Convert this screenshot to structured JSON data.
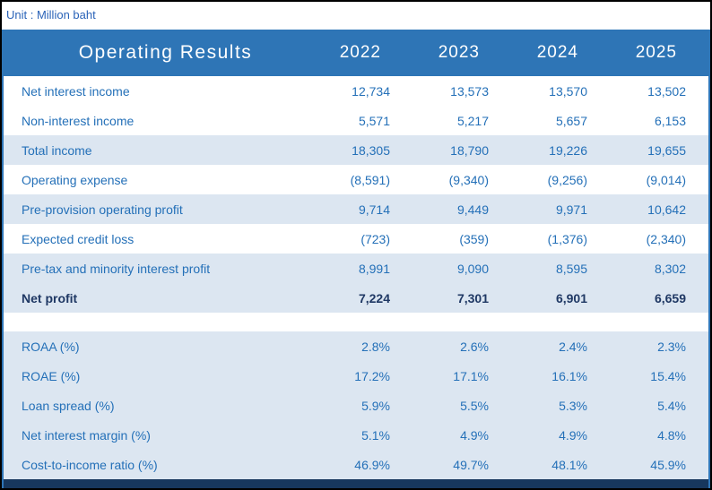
{
  "unit_label": "Unit : Million baht",
  "table": {
    "title": "Operating Results",
    "years": [
      "2022",
      "2023",
      "2024",
      "2025"
    ],
    "sections": {
      "operating": [
        {
          "label": "Net interest income",
          "values": [
            "12,734",
            "13,573",
            "13,570",
            "13,502"
          ],
          "shaded": false,
          "bold": false
        },
        {
          "label": "Non-interest income",
          "values": [
            "5,571",
            "5,217",
            "5,657",
            "6,153"
          ],
          "shaded": false,
          "bold": false
        },
        {
          "label": "Total income",
          "values": [
            "18,305",
            "18,790",
            "19,226",
            "19,655"
          ],
          "shaded": true,
          "bold": false
        },
        {
          "label": "Operating expense",
          "values": [
            "(8,591)",
            "(9,340)",
            "(9,256)",
            "(9,014)"
          ],
          "shaded": false,
          "bold": false
        },
        {
          "label": "Pre-provision operating profit",
          "values": [
            "9,714",
            "9,449",
            "9,971",
            "10,642"
          ],
          "shaded": true,
          "bold": false
        },
        {
          "label": "Expected credit loss",
          "values": [
            "(723)",
            "(359)",
            "(1,376)",
            "(2,340)"
          ],
          "shaded": false,
          "bold": false
        },
        {
          "label": "Pre-tax and minority interest profit",
          "values": [
            "8,991",
            "9,090",
            "8,595",
            "8,302"
          ],
          "shaded": true,
          "bold": false
        },
        {
          "label": "Net profit",
          "values": [
            "7,224",
            "7,301",
            "6,901",
            "6,659"
          ],
          "shaded": true,
          "bold": true
        }
      ],
      "ratios": [
        {
          "label": "ROAA (%)",
          "values": [
            "2.8%",
            "2.6%",
            "2.4%",
            "2.3%"
          ],
          "shaded": true,
          "bold": false
        },
        {
          "label": "ROAE (%)",
          "values": [
            "17.2%",
            "17.1%",
            "16.1%",
            "15.4%"
          ],
          "shaded": true,
          "bold": false
        },
        {
          "label": "Loan spread (%)",
          "values": [
            "5.9%",
            "5.5%",
            "5.3%",
            "5.4%"
          ],
          "shaded": true,
          "bold": false
        },
        {
          "label": "Net interest margin (%)",
          "values": [
            "5.1%",
            "4.9%",
            "4.9%",
            "4.8%"
          ],
          "shaded": true,
          "bold": false
        },
        {
          "label": "Cost-to-income ratio (%)",
          "values": [
            "46.9%",
            "49.7%",
            "48.1%",
            "45.9%"
          ],
          "shaded": true,
          "bold": false
        }
      ]
    }
  },
  "chart_data": {
    "type": "table",
    "title": "Operating Results",
    "unit": "Million baht",
    "columns": [
      "2022",
      "2023",
      "2024",
      "2025"
    ],
    "rows": [
      {
        "label": "Net interest income",
        "values": [
          12734,
          13573,
          13570,
          13502
        ]
      },
      {
        "label": "Non-interest income",
        "values": [
          5571,
          5217,
          5657,
          6153
        ]
      },
      {
        "label": "Total income",
        "values": [
          18305,
          18790,
          19226,
          19655
        ]
      },
      {
        "label": "Operating expense",
        "values": [
          -8591,
          -9340,
          -9256,
          -9014
        ]
      },
      {
        "label": "Pre-provision operating profit",
        "values": [
          9714,
          9449,
          9971,
          10642
        ]
      },
      {
        "label": "Expected credit loss",
        "values": [
          -723,
          -359,
          -1376,
          -2340
        ]
      },
      {
        "label": "Pre-tax and minority interest profit",
        "values": [
          8991,
          9090,
          8595,
          8302
        ]
      },
      {
        "label": "Net profit",
        "values": [
          7224,
          7301,
          6901,
          6659
        ]
      },
      {
        "label": "ROAA (%)",
        "values": [
          2.8,
          2.6,
          2.4,
          2.3
        ]
      },
      {
        "label": "ROAE (%)",
        "values": [
          17.2,
          17.1,
          16.1,
          15.4
        ]
      },
      {
        "label": "Loan spread (%)",
        "values": [
          5.9,
          5.5,
          5.3,
          5.4
        ]
      },
      {
        "label": "Net interest margin (%)",
        "values": [
          5.1,
          4.9,
          4.9,
          4.8
        ]
      },
      {
        "label": "Cost-to-income ratio (%)",
        "values": [
          46.9,
          49.7,
          48.1,
          45.9
        ]
      }
    ]
  },
  "colors": {
    "header_blue": "#2e75b6",
    "row_shade": "#dce6f1",
    "text_blue": "#2470b8",
    "net_profit_navy": "#1f3864",
    "footer_navy": "#17375d",
    "unit_text": "#2a63b8",
    "border_black": "#000000"
  }
}
